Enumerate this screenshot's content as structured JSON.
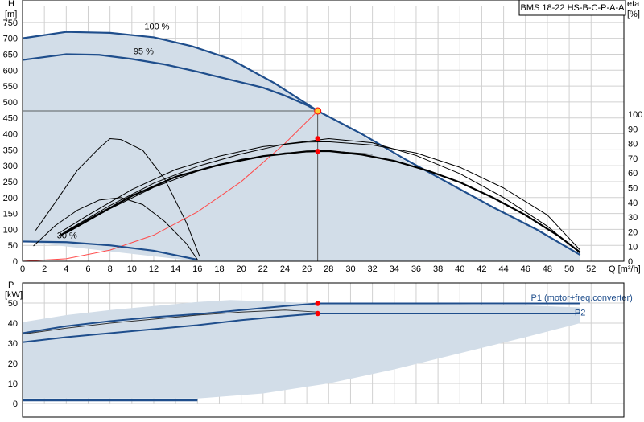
{
  "title": "BMS 18-22 HS-B-C-P-A-A",
  "colors": {
    "area": "#d2dde8",
    "main_curve": "#1f4e8c",
    "thin_curve": "#000000",
    "system_curve": "#ff4a4a",
    "duty_point": "#ff0000",
    "duty_point_yellow": "#ffcc33",
    "grid": "#d0d0d0",
    "ref_line": "#000000"
  },
  "chart_data": [
    {
      "name": "head-chart",
      "type": "line",
      "y_label_left": [
        "H",
        "[m]"
      ],
      "y_label_right": [
        "eta",
        "[%]"
      ],
      "x_unit": "Q [m³/h]",
      "xlim": [
        0,
        55
      ],
      "ylim": [
        0,
        800
      ],
      "eta_lim": [
        0,
        100
      ],
      "x_ticks": [
        0,
        2,
        4,
        6,
        8,
        10,
        12,
        14,
        16,
        18,
        20,
        22,
        24,
        26,
        28,
        30,
        32,
        34,
        36,
        38,
        40,
        42,
        44,
        46,
        48,
        50,
        52
      ],
      "y_ticks": [
        0,
        50,
        100,
        150,
        200,
        250,
        300,
        350,
        400,
        450,
        500,
        550,
        600,
        650,
        700,
        750
      ],
      "eta_ticks": [
        0,
        10,
        20,
        30,
        40,
        50,
        60,
        70,
        80,
        90,
        100
      ],
      "speed_labels": [
        {
          "text": "100 %",
          "x": 11,
          "y": 738
        },
        {
          "text": "95 %",
          "x": 10,
          "y": 660
        },
        {
          "text": "30 %",
          "x": 3,
          "y": 82
        }
      ],
      "area_boundary": [
        [
          0,
          700
        ],
        [
          4,
          720
        ],
        [
          8,
          715
        ],
        [
          12,
          700
        ],
        [
          15.5,
          675
        ],
        [
          19,
          635
        ],
        [
          23,
          560
        ],
        [
          27,
          475
        ],
        [
          31,
          395
        ],
        [
          35,
          315
        ],
        [
          39,
          245
        ],
        [
          43,
          170
        ],
        [
          47,
          100
        ],
        [
          51,
          20
        ],
        [
          51,
          0
        ],
        [
          16,
          0
        ],
        [
          0,
          62
        ]
      ],
      "series": [
        {
          "name": "100 %",
          "style": "main",
          "points": [
            [
              0,
              700
            ],
            [
              4,
              720
            ],
            [
              8,
              717
            ],
            [
              12,
              703
            ],
            [
              15.5,
              675
            ],
            [
              19,
              635
            ],
            [
              23,
              560
            ],
            [
              27,
              472
            ],
            [
              31,
              400
            ],
            [
              35,
              320
            ],
            [
              39,
              245
            ],
            [
              43,
              170
            ],
            [
              47,
              100
            ],
            [
              51,
              20
            ]
          ]
        },
        {
          "name": "95 %",
          "style": "main",
          "points": [
            [
              0,
              632
            ],
            [
              4,
              650
            ],
            [
              7,
              648
            ],
            [
              10,
              635
            ],
            [
              13,
              618
            ],
            [
              16,
              595
            ],
            [
              19,
              570
            ],
            [
              22,
              545
            ],
            [
              24,
              520
            ],
            [
              26,
              490
            ],
            [
              27,
              472
            ]
          ]
        },
        {
          "name": "30 %",
          "style": "main",
          "points": [
            [
              0,
              62
            ],
            [
              4,
              60
            ],
            [
              8,
              50
            ],
            [
              12,
              33
            ],
            [
              16,
              5
            ]
          ]
        },
        {
          "name": "eta-100",
          "style": "bold",
          "points": [
            [
              3.5,
              82
            ],
            [
              6,
              130
            ],
            [
              10,
              205
            ],
            [
              14,
              265
            ],
            [
              18,
              303
            ],
            [
              22,
              330
            ],
            [
              26,
              345
            ],
            [
              28,
              346
            ],
            [
              31,
              335
            ],
            [
              34,
              315
            ],
            [
              37,
              285
            ],
            [
              40,
              248
            ],
            [
              43,
              200
            ],
            [
              46,
              145
            ],
            [
              49,
              80
            ],
            [
              51,
              28
            ]
          ]
        },
        {
          "name": "eta-95",
          "style": "thin",
          "points": [
            [
              3.5,
              92
            ],
            [
              6,
              145
            ],
            [
              10,
              225
            ],
            [
              14,
              288
            ],
            [
              18,
              330
            ],
            [
              22,
              360
            ],
            [
              26,
              374
            ],
            [
              28,
              375
            ],
            [
              32,
              365
            ],
            [
              36,
              340
            ],
            [
              40,
              295
            ],
            [
              44,
              230
            ],
            [
              48,
              145
            ],
            [
              51,
              35
            ]
          ]
        },
        {
          "name": "eta-30",
          "style": "thin",
          "points": [
            [
              1,
              48
            ],
            [
              3,
              112
            ],
            [
              5,
              160
            ],
            [
              7,
              192
            ],
            [
              9,
              200
            ],
            [
              11,
              178
            ],
            [
              13,
              125
            ],
            [
              15,
              55
            ],
            [
              16,
              5
            ]
          ]
        },
        {
          "name": "eta-30b",
          "style": "thin",
          "points": [
            [
              1.2,
              97
            ],
            [
              3,
              185
            ],
            [
              5,
              285
            ],
            [
              7,
              355
            ],
            [
              8,
              385
            ],
            [
              9,
              382
            ],
            [
              11,
              348
            ],
            [
              13,
              258
            ],
            [
              15,
              120
            ],
            [
              16.2,
              15
            ]
          ]
        },
        {
          "name": "eta-95b",
          "style": "thin",
          "points": [
            [
              4,
              95
            ],
            [
              8,
              175
            ],
            [
              12,
              245
            ],
            [
              16,
              298
            ],
            [
              20,
              337
            ],
            [
              24,
              368
            ],
            [
              28,
              385
            ],
            [
              32,
              372
            ],
            [
              36,
              332
            ],
            [
              40,
              275
            ],
            [
              44,
              200
            ],
            [
              48,
              110
            ],
            [
              51,
              25
            ]
          ]
        },
        {
          "name": "eta-90",
          "style": "thin",
          "points": [
            [
              4,
              88
            ],
            [
              8,
              165
            ],
            [
              12,
              232
            ],
            [
              16,
              283
            ],
            [
              20,
              320
            ],
            [
              24,
              340
            ],
            [
              28,
              346
            ],
            [
              32,
              336
            ]
          ]
        }
      ],
      "system_curve": [
        [
          0,
          0
        ],
        [
          4,
          8
        ],
        [
          8,
          35
        ],
        [
          12,
          82
        ],
        [
          16,
          155
        ],
        [
          20,
          250
        ],
        [
          24,
          370
        ],
        [
          27,
          472
        ]
      ],
      "duty_point": {
        "x": 27,
        "y": 472
      },
      "eta_points": [
        {
          "x": 27,
          "y": 385
        },
        {
          "x": 27,
          "y": 345
        }
      ]
    },
    {
      "name": "power-chart",
      "type": "line",
      "y_label_left": [
        "P",
        "[kW]"
      ],
      "xlim": [
        0,
        55
      ],
      "ylim": [
        0,
        60
      ],
      "y_ticks": [
        0,
        10,
        20,
        30,
        40,
        50
      ],
      "area_boundary": [
        [
          0,
          40.5
        ],
        [
          4,
          44
        ],
        [
          8,
          46.5
        ],
        [
          12,
          48.5
        ],
        [
          16,
          50.5
        ],
        [
          19,
          51.5
        ],
        [
          24,
          50.5
        ],
        [
          27,
          49.8
        ],
        [
          34,
          49.5
        ],
        [
          40,
          49.3
        ],
        [
          46,
          48.8
        ],
        [
          51,
          47.8
        ],
        [
          51,
          40
        ],
        [
          46,
          33
        ],
        [
          40,
          25
        ],
        [
          34,
          17
        ],
        [
          28,
          10
        ],
        [
          22,
          5
        ],
        [
          16,
          2.5
        ],
        [
          0,
          2.5
        ]
      ],
      "series": [
        {
          "name": "P1 (motor+freq.converter)",
          "style": "main",
          "points": [
            [
              0,
              35
            ],
            [
              4,
              38.5
            ],
            [
              8,
              41
            ],
            [
              12,
              43
            ],
            [
              16,
              44.5
            ],
            [
              20,
              46.5
            ],
            [
              24,
              48.5
            ],
            [
              27,
              49.8
            ],
            [
              34,
              49.8
            ],
            [
              40,
              49.8
            ],
            [
              46,
              49.8
            ],
            [
              51,
              49.8
            ]
          ]
        },
        {
          "name": "P2",
          "style": "main",
          "points": [
            [
              0,
              30.5
            ],
            [
              4,
              33
            ],
            [
              8,
              35
            ],
            [
              12,
              37
            ],
            [
              16,
              39
            ],
            [
              20,
              41.5
            ],
            [
              24,
              43.5
            ],
            [
              27,
              44.8
            ],
            [
              34,
              44.8
            ],
            [
              40,
              44.8
            ],
            [
              46,
              44.8
            ],
            [
              51,
              44.8
            ]
          ]
        },
        {
          "name": "low-1",
          "style": "main",
          "points": [
            [
              0,
              2
            ],
            [
              16,
              2
            ]
          ]
        },
        {
          "name": "low-2",
          "style": "main",
          "points": [
            [
              0,
              1.5
            ],
            [
              16,
              1.5
            ]
          ]
        },
        {
          "name": "mid",
          "style": "thin",
          "points": [
            [
              0,
              34.5
            ],
            [
              4,
              37.5
            ],
            [
              8,
              40
            ],
            [
              12,
              42
            ],
            [
              16,
              44
            ],
            [
              20,
              45.5
            ],
            [
              24,
              46.5
            ],
            [
              27,
              45.5
            ]
          ]
        }
      ],
      "duty_points": [
        {
          "x": 27,
          "y": 49.8
        },
        {
          "x": 27,
          "y": 44.8
        }
      ],
      "labels": [
        {
          "text": "P1 (motor+freq.converter)",
          "x": 46.5,
          "y": 50.5
        },
        {
          "text": "P2",
          "x": 50.5,
          "y": 43
        }
      ]
    }
  ]
}
